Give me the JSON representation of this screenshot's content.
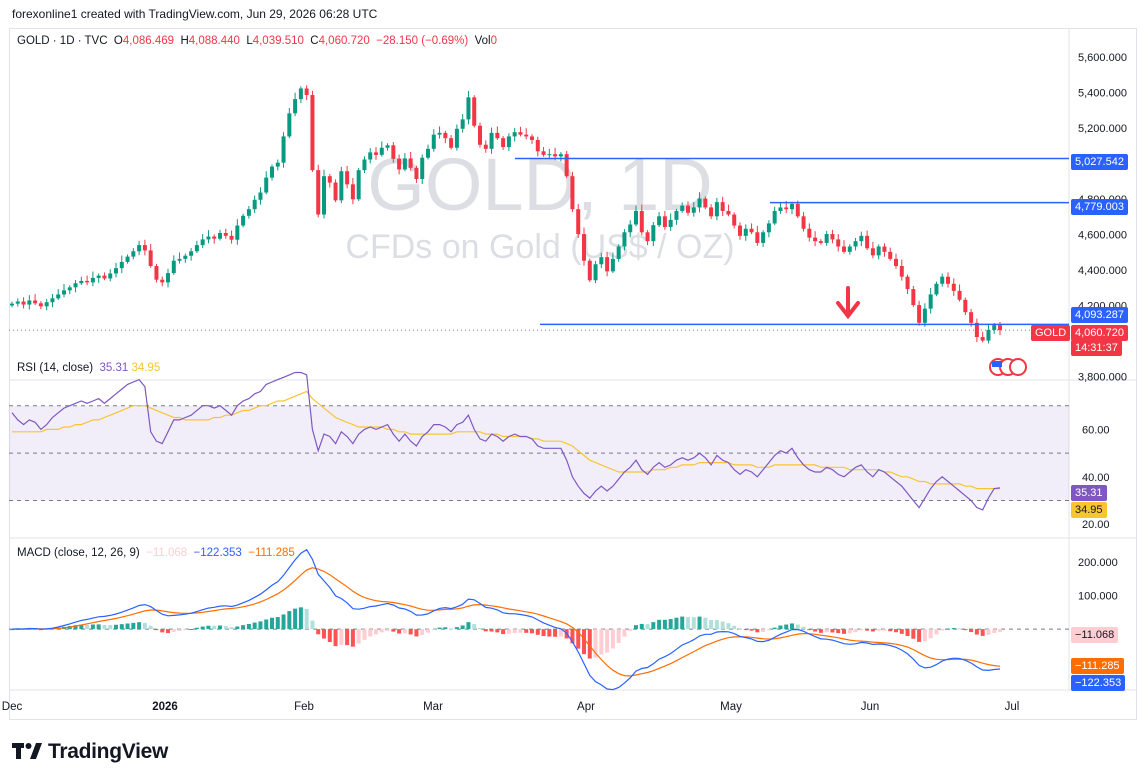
{
  "attribution": "forexonline1 created with TradingView.com, Jun 29, 2026 06:28 UTC",
  "legend": {
    "symbol": "GOLD · 1D · TVC",
    "open_label": "O",
    "open": "4,086.469",
    "high_label": "H",
    "high": "4,088.440",
    "low_label": "L",
    "low": "4,039.510",
    "close_label": "C",
    "close": "4,060.720",
    "change": "−28.150 (−0.69%)",
    "vol_label": "Vol",
    "vol": "0"
  },
  "watermark": {
    "line1": "GOLD, 1D",
    "line2": "CFDs on Gold (US$ / OZ)"
  },
  "price_tag": {
    "symbol": "GOLD",
    "price": "4,060.720",
    "countdown": "14:31:37"
  },
  "rsi_legend": {
    "label": "RSI (14, close)",
    "rsi": "35.31",
    "ma": "34.95"
  },
  "macd_legend": {
    "label": "MACD (close, 12, 26, 9)",
    "hist": "−11.068",
    "macd": "−122.353",
    "signal": "−111.285"
  },
  "colors": {
    "up": "#089981",
    "down": "#f23645",
    "level": "#2962ff",
    "rsi": "#7e57c2",
    "rsi_ma": "#f7c531",
    "macd": "#2962ff",
    "signal": "#ff6d00",
    "hist_up": "#26a69a",
    "hist_up_light": "#b2dfdb",
    "hist_down": "#ff5252",
    "hist_down_light": "#ffcdd2",
    "arrow": "#f23645"
  },
  "branding": {
    "logo_text": "TradingView"
  },
  "chart_data": [
    {
      "type": "candlestick",
      "name": "GOLD",
      "yaxis_ticks": [
        "5,600.000",
        "5,400.000",
        "5,200.000",
        "4,800.000",
        "4,600.000",
        "4,400.000",
        "4,200.000",
        "3,800.000"
      ],
      "ylim": [
        3780,
        5650
      ],
      "xaxis_ticks": [
        "Dec",
        "2026",
        "Feb",
        "Mar",
        "Apr",
        "May",
        "Jun",
        "Jul"
      ],
      "current_price": 4060.72,
      "levels": [
        {
          "value": 5027.542,
          "label": "5,027.542"
        },
        {
          "value": 4779.003,
          "label": "4,779.003"
        },
        {
          "value": 4093.287,
          "label": "4,093.287"
        }
      ],
      "close": [
        4210,
        4222,
        4205,
        4228,
        4212,
        4195,
        4218,
        4240,
        4262,
        4285,
        4302,
        4325,
        4338,
        4330,
        4355,
        4368,
        4352,
        4380,
        4410,
        4445,
        4475,
        4505,
        4540,
        4510,
        4422,
        4345,
        4330,
        4382,
        4452,
        4462,
        4480,
        4505,
        4540,
        4572,
        4588,
        4576,
        4608,
        4592,
        4570,
        4650,
        4705,
        4742,
        4795,
        4836,
        4920,
        4982,
        5004,
        5152,
        5282,
        5362,
        5422,
        5385,
        4962,
        4712,
        4928,
        4892,
        4792,
        4956,
        4882,
        4798,
        4962,
        5022,
        5062,
        5048,
        5088,
        5102,
        5026,
        4966,
        5028,
        4975,
        4912,
        5032,
        5082,
        5162,
        5172,
        5142,
        5088,
        5195,
        5248,
        5372,
        5212,
        5105,
        5082,
        5172,
        5142,
        5092,
        5152,
        5176,
        5162,
        5152,
        5132,
        5068,
        5048,
        5052,
        5040,
        5052,
        4928,
        4742,
        4602,
        4452,
        4342,
        4432,
        4472,
        4392,
        4462,
        4532,
        4612,
        4656,
        4732,
        4612,
        4562,
        4652,
        4702,
        4642,
        4682,
        4732,
        4762,
        4722,
        4752,
        4802,
        4752,
        4702,
        4782,
        4732,
        4712,
        4650,
        4592,
        4632,
        4612,
        4552,
        4612,
        4662,
        4732,
        4752,
        4742,
        4772,
        4702,
        4632,
        4582,
        4562,
        4552,
        4602,
        4572,
        4532,
        4502,
        4532,
        4562,
        4592,
        4522,
        4482,
        4532,
        4502,
        4462,
        4422,
        4362,
        4292,
        4202,
        4102,
        4182,
        4262,
        4322,
        4362,
        4322,
        4282,
        4232,
        4162,
        4102,
        4022,
        4002,
        4062,
        4089,
        4061
      ],
      "value_note": "daily closes, Nov 27 2025 – Jun 29 2026"
    },
    {
      "type": "line",
      "name": "RSI (14, close)",
      "yaxis_ticks": [
        "60.00",
        "40.00",
        "20.00"
      ],
      "bands": [
        30,
        50,
        70
      ],
      "ylim": [
        15,
        80
      ],
      "series": [
        {
          "name": "RSI",
          "last": 35.31,
          "values": [
            67,
            64,
            62,
            64,
            63,
            60,
            62,
            65,
            67,
            69,
            70,
            71,
            72,
            71,
            72,
            73,
            71,
            73,
            75,
            77,
            79,
            80,
            81,
            78,
            59,
            55,
            54,
            59,
            64,
            64,
            65,
            66,
            68,
            70,
            70,
            69,
            70,
            68,
            66,
            70,
            72,
            73,
            75,
            76,
            79,
            80,
            81,
            82,
            83,
            84,
            84,
            83,
            60,
            51,
            58,
            57,
            54,
            59,
            57,
            54,
            58,
            60,
            61,
            60,
            61,
            62,
            58,
            55,
            58,
            55,
            53,
            57,
            59,
            62,
            62,
            61,
            59,
            62,
            63,
            66,
            60,
            56,
            55,
            58,
            57,
            55,
            57,
            58,
            57,
            57,
            56,
            53,
            52,
            52,
            52,
            52,
            47,
            40,
            36,
            33,
            31,
            34,
            36,
            34,
            36,
            39,
            42,
            44,
            47,
            43,
            41,
            44,
            46,
            44,
            45,
            47,
            48,
            47,
            48,
            50,
            48,
            45,
            49,
            47,
            46,
            43,
            41,
            43,
            42,
            40,
            43,
            46,
            49,
            51,
            50,
            52,
            48,
            45,
            43,
            42,
            42,
            44,
            43,
            41,
            40,
            42,
            44,
            45,
            42,
            40,
            43,
            42,
            40,
            38,
            36,
            33,
            30,
            27,
            31,
            35,
            38,
            40,
            38,
            36,
            34,
            32,
            30,
            27,
            26,
            31,
            35,
            35.31
          ]
        },
        {
          "name": "RSI-based MA",
          "last": 34.95,
          "values": [
            59,
            59,
            59,
            59,
            59,
            59,
            60,
            60,
            60,
            61,
            61,
            62,
            62,
            63,
            64,
            64,
            65,
            66,
            67,
            68,
            69,
            70,
            70,
            70,
            69,
            68,
            67,
            66,
            65,
            65,
            64,
            64,
            64,
            64,
            64,
            65,
            65,
            66,
            66,
            67,
            68,
            68,
            69,
            70,
            70,
            71,
            72,
            72,
            73,
            74,
            75,
            76,
            73,
            71,
            69,
            67,
            65,
            64,
            63,
            62,
            61,
            61,
            61,
            61,
            61,
            60,
            60,
            59,
            59,
            58,
            58,
            58,
            58,
            58,
            58,
            58,
            58,
            59,
            59,
            59,
            59,
            59,
            58,
            58,
            58,
            57,
            57,
            57,
            57,
            57,
            56,
            56,
            55,
            55,
            55,
            55,
            54,
            53,
            51,
            49,
            47,
            46,
            45,
            44,
            43,
            42,
            42,
            42,
            42,
            42,
            42,
            43,
            43,
            43,
            44,
            44,
            45,
            45,
            45,
            46,
            46,
            46,
            46,
            46,
            46,
            45,
            45,
            45,
            45,
            44,
            44,
            44,
            45,
            45,
            45,
            45,
            45,
            45,
            45,
            45,
            44,
            44,
            44,
            44,
            44,
            43,
            43,
            43,
            43,
            43,
            43,
            42,
            42,
            41,
            40,
            40,
            39,
            38,
            38,
            37,
            37,
            37,
            37,
            37,
            37,
            36,
            36,
            35,
            35,
            35,
            35,
            34.95
          ]
        }
      ]
    },
    {
      "type": "line+histogram",
      "name": "MACD (close, 12, 26, 9)",
      "yaxis_ticks": [
        "200.000",
        "100.000"
      ],
      "ylim": [
        -175,
        250
      ],
      "series": [
        {
          "name": "MACD",
          "last": -122.353
        },
        {
          "name": "Signal",
          "last": -111.285
        },
        {
          "name": "Histogram",
          "last": -11.068
        }
      ]
    }
  ]
}
